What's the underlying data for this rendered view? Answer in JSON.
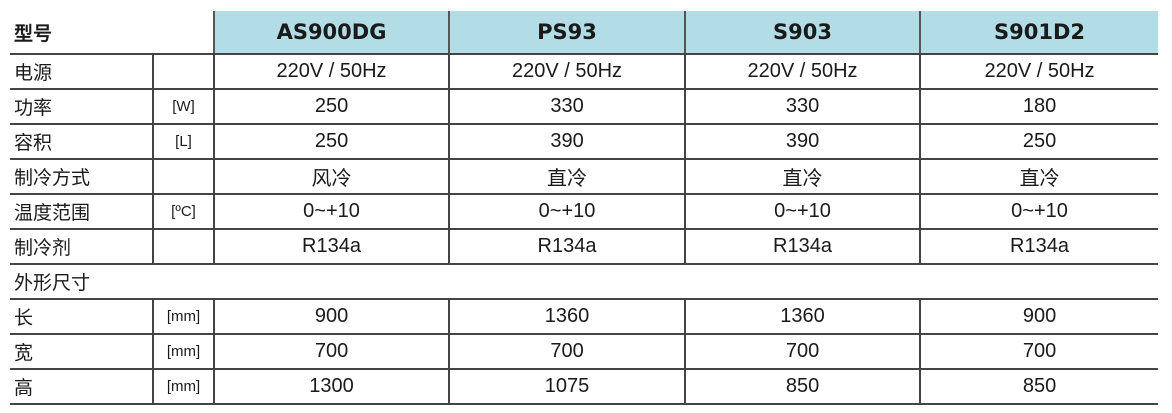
{
  "header": {
    "label": "型号",
    "models": [
      "AS900DG",
      "PS93",
      "S903",
      "S901D2"
    ]
  },
  "colors": {
    "header_bg": "#b2dde7"
  },
  "rows": [
    {
      "label": "电源",
      "unit": "",
      "values": [
        "220V / 50Hz",
        "220V / 50Hz",
        "220V / 50Hz",
        "220V / 50Hz"
      ]
    },
    {
      "label": "功率",
      "unit": "[W]",
      "values": [
        "250",
        "330",
        "330",
        "180"
      ]
    },
    {
      "label": "容积",
      "unit": "[L]",
      "values": [
        "250",
        "390",
        "390",
        "250"
      ]
    },
    {
      "label": "制冷方式",
      "unit": "",
      "values": [
        "风冷",
        "直冷",
        "直冷",
        "直冷"
      ]
    },
    {
      "label": "温度范围",
      "unit": "[ºC]",
      "values": [
        "0~+10",
        "0~+10",
        "0~+10",
        "0~+10"
      ]
    },
    {
      "label": "制冷剂",
      "unit": "",
      "values": [
        "R134a",
        "R134a",
        "R134a",
        "R134a"
      ]
    }
  ],
  "section": {
    "label": "外形尺寸"
  },
  "dim_rows": [
    {
      "label": "长",
      "unit": "[mm]",
      "values": [
        "900",
        "1360",
        "1360",
        "900"
      ]
    },
    {
      "label": "宽",
      "unit": "[mm]",
      "values": [
        "700",
        "700",
        "700",
        "700"
      ]
    },
    {
      "label": "高",
      "unit": "[mm]",
      "values": [
        "1300",
        "1075",
        "850",
        "850"
      ]
    }
  ]
}
